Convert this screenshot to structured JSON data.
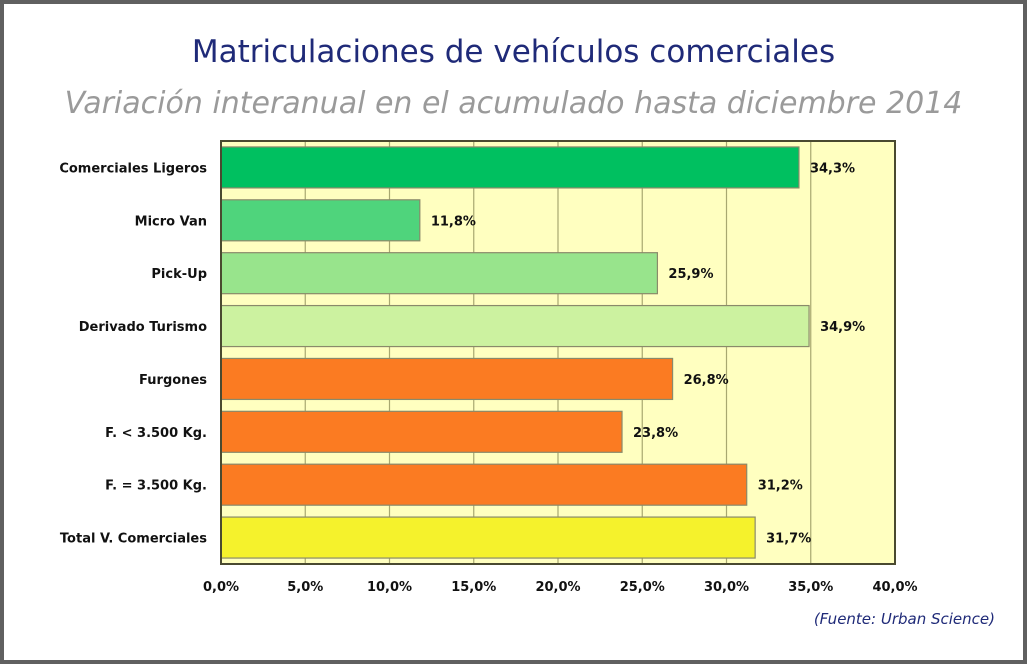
{
  "chart_data": {
    "type": "bar",
    "orientation": "horizontal",
    "title": "Matriculaciones de vehículos comerciales",
    "subtitle": "Variación interanual en el acumulado hasta diciembre 2014",
    "categories": [
      "Comerciales Ligeros",
      "Micro Van",
      "Pick-Up",
      "Derivado Turismo",
      "Furgones",
      "F. < 3.500 Kg.",
      "F. = 3.500 Kg.",
      "Total V. Comerciales"
    ],
    "values": [
      34.3,
      11.8,
      25.9,
      34.9,
      26.8,
      23.8,
      31.2,
      31.7
    ],
    "value_labels": [
      "34,3%",
      "11,8%",
      "25,9%",
      "34,9%",
      "26,8%",
      "23,8%",
      "31,2%",
      "31,7%"
    ],
    "colors": [
      "#00c060",
      "#4fd47c",
      "#98e48c",
      "#ccf2a0",
      "#fb7b22",
      "#fb7b22",
      "#fb7b22",
      "#f5f22c"
    ],
    "xlim": [
      0,
      40
    ],
    "x_ticks": [
      0,
      5,
      10,
      15,
      20,
      25,
      30,
      35,
      40
    ],
    "x_tick_labels": [
      "0,0%",
      "5,0%",
      "10,0%",
      "15,0%",
      "20,0%",
      "25,0%",
      "30,0%",
      "35,0%",
      "40,0%"
    ],
    "xlabel": "",
    "ylabel": "",
    "grid": true,
    "plot_background": "#ffffc0",
    "source": "(Fuente: Urban Science)"
  }
}
